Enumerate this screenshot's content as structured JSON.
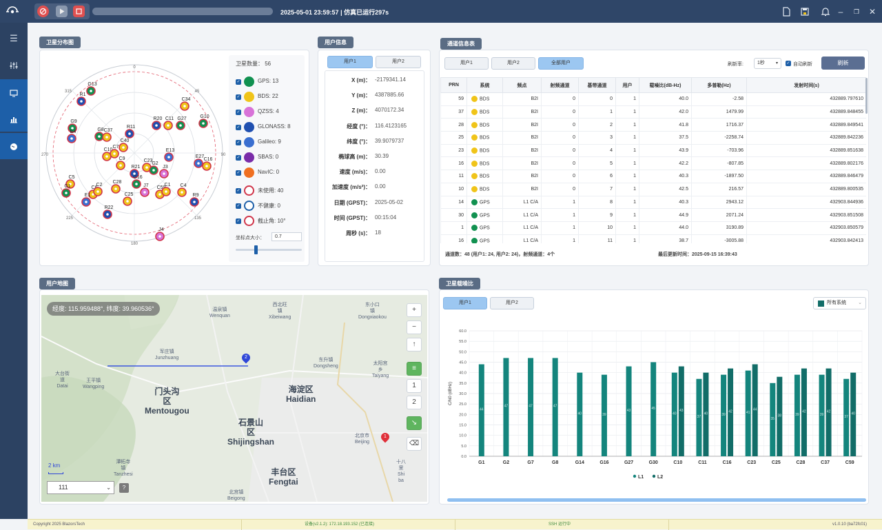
{
  "topbar": {
    "sim_time": "2025-05-01 23:59:57 | 仿真已运行297s",
    "icons": [
      "rocket-icon",
      "play-icon",
      "stop-icon",
      "file-icon",
      "save-icon",
      "bell-icon",
      "minimize-icon",
      "restore-icon",
      "close-icon"
    ]
  },
  "sidebar": {
    "items": [
      "menu-icon",
      "sliders-icon",
      "monitor-icon",
      "chart-icon",
      "globe-icon"
    ],
    "active_index": 3
  },
  "sky": {
    "title": "卫星分布图",
    "count_label": "卫星数量：",
    "count_value": "56",
    "systems": [
      {
        "label": "GPS: 13",
        "color": "#119150"
      },
      {
        "label": "BDS: 22",
        "color": "#f0c419"
      },
      {
        "label": "QZSS: 4",
        "color": "#d873d8"
      },
      {
        "label": "GLONASS: 8",
        "color": "#2050b0"
      },
      {
        "label": "Galileo: 9",
        "color": "#3a6fd0"
      },
      {
        "label": "SBAS: 0",
        "color": "#7a2ca8"
      },
      {
        "label": "NavIC: 0",
        "color": "#f07021"
      }
    ],
    "states": [
      {
        "label": "未使用: 40",
        "color": "#d0354a"
      },
      {
        "label": "不健康: 0",
        "color": "#1d5fa8"
      },
      {
        "label": "截止角: 10°",
        "color": "#d0354a"
      }
    ],
    "size_label": "坐标点大小：",
    "size_value": "0.7",
    "slider_fraction": 0.3,
    "az_labels": {
      "n": "0",
      "ne": "45",
      "e": "90",
      "se": "135",
      "s": "180",
      "sw": "225",
      "w": "270",
      "nw": "315"
    },
    "sats": [
      {
        "id": "G13"
      },
      {
        "id": "R1"
      },
      {
        "id": "G9"
      },
      {
        "id": "E4"
      },
      {
        "id": "G8"
      },
      {
        "id": "C37"
      },
      {
        "id": "R11"
      },
      {
        "id": "C40"
      },
      {
        "id": "C10"
      },
      {
        "id": "C7"
      },
      {
        "id": "C9"
      },
      {
        "id": "R21"
      },
      {
        "id": "C23"
      },
      {
        "id": "G2"
      },
      {
        "id": "R20"
      },
      {
        "id": "C11"
      },
      {
        "id": "G27"
      },
      {
        "id": "C34"
      },
      {
        "id": "G10"
      },
      {
        "id": "E13"
      },
      {
        "id": "E27"
      },
      {
        "id": "C16"
      },
      {
        "id": "C5"
      },
      {
        "id": "G16"
      },
      {
        "id": "C28"
      },
      {
        "id": "C6"
      },
      {
        "id": "C2"
      },
      {
        "id": "J7"
      },
      {
        "id": "C59"
      },
      {
        "id": "C1"
      },
      {
        "id": "C4"
      },
      {
        "id": "R9"
      },
      {
        "id": "E1"
      },
      {
        "id": "R22"
      },
      {
        "id": "J4"
      },
      {
        "id": "G1"
      },
      {
        "id": "C25"
      },
      {
        "id": "J3"
      }
    ]
  },
  "user_info": {
    "title": "用户信息",
    "tabs": [
      "用户1",
      "用户2"
    ],
    "rows": [
      {
        "k": "X (m)：",
        "v": "-2179341.14"
      },
      {
        "k": "Y (m)：",
        "v": "4387885.66"
      },
      {
        "k": "Z (m)：",
        "v": "4070172.34"
      },
      {
        "k": "经度 (°)：",
        "v": "116.4123165"
      },
      {
        "k": "纬度 (°)：",
        "v": "39.9079737"
      },
      {
        "k": "椭球高 (m)：",
        "v": "30.39"
      },
      {
        "k": "速度 (m/s)：",
        "v": "0.00"
      },
      {
        "k": "加速度 (m/s²)：",
        "v": "0.00"
      },
      {
        "k": "日期 (GPST)：",
        "v": "2025-05-02"
      },
      {
        "k": "时间 (GPST)：",
        "v": "00:15:04"
      },
      {
        "k": "周秒 (s)：",
        "v": "18"
      }
    ]
  },
  "channels": {
    "title": "通道信息表",
    "tabs": [
      "用户1",
      "用户2",
      "全部用户"
    ],
    "refresh_label": "刷新率:",
    "refresh_value": "1秒",
    "auto_refresh_label": "自动刷新",
    "refresh_button": "刷新",
    "headers": [
      "PRN",
      "系统",
      "频点",
      "射频通道",
      "基带通道",
      "用户",
      "载噪比(dB-Hz)",
      "多普勒(Hz)",
      "发射时间(s)"
    ],
    "rows": [
      {
        "prn": "59",
        "sys": "BDS",
        "color": "#f0c419",
        "freq": "B2I",
        "rf": "0",
        "bb": "0",
        "user": "1",
        "cn0": "40.0",
        "dop": "-2.58",
        "tx": "432889.797610"
      },
      {
        "prn": "37",
        "sys": "BDS",
        "color": "#f0c419",
        "freq": "B2I",
        "rf": "0",
        "bb": "1",
        "user": "1",
        "cn0": "42.0",
        "dop": "1479.99",
        "tx": "432889.848455"
      },
      {
        "prn": "28",
        "sys": "BDS",
        "color": "#f0c419",
        "freq": "B2I",
        "rf": "0",
        "bb": "2",
        "user": "1",
        "cn0": "41.8",
        "dop": "1716.37",
        "tx": "432889.849541"
      },
      {
        "prn": "25",
        "sys": "BDS",
        "color": "#f0c419",
        "freq": "B2I",
        "rf": "0",
        "bb": "3",
        "user": "1",
        "cn0": "37.5",
        "dop": "-2258.74",
        "tx": "432889.842236"
      },
      {
        "prn": "23",
        "sys": "BDS",
        "color": "#f0c419",
        "freq": "B2I",
        "rf": "0",
        "bb": "4",
        "user": "1",
        "cn0": "43.9",
        "dop": "-703.96",
        "tx": "432889.851638"
      },
      {
        "prn": "16",
        "sys": "BDS",
        "color": "#f0c419",
        "freq": "B2I",
        "rf": "0",
        "bb": "5",
        "user": "1",
        "cn0": "42.2",
        "dop": "-807.85",
        "tx": "432889.802176"
      },
      {
        "prn": "11",
        "sys": "BDS",
        "color": "#f0c419",
        "freq": "B2I",
        "rf": "0",
        "bb": "6",
        "user": "1",
        "cn0": "40.3",
        "dop": "-1897.50",
        "tx": "432889.846479"
      },
      {
        "prn": "10",
        "sys": "BDS",
        "color": "#f0c419",
        "freq": "B2I",
        "rf": "0",
        "bb": "7",
        "user": "1",
        "cn0": "42.5",
        "dop": "216.57",
        "tx": "432889.800535"
      },
      {
        "prn": "14",
        "sys": "GPS",
        "color": "#119150",
        "freq": "L1 C/A",
        "rf": "1",
        "bb": "8",
        "user": "1",
        "cn0": "40.3",
        "dop": "2943.12",
        "tx": "432903.844936"
      },
      {
        "prn": "30",
        "sys": "GPS",
        "color": "#119150",
        "freq": "L1 C/A",
        "rf": "1",
        "bb": "9",
        "user": "1",
        "cn0": "44.9",
        "dop": "2071.24",
        "tx": "432903.851508"
      },
      {
        "prn": "1",
        "sys": "GPS",
        "color": "#119150",
        "freq": "L1 C/A",
        "rf": "1",
        "bb": "10",
        "user": "1",
        "cn0": "44.0",
        "dop": "3190.89",
        "tx": "432903.850579"
      },
      {
        "prn": "16",
        "sys": "GPS",
        "color": "#119150",
        "freq": "L1 C/A",
        "rf": "1",
        "bb": "11",
        "user": "1",
        "cn0": "38.7",
        "dop": "-3005.88",
        "tx": "432903.842413"
      }
    ],
    "footer_count": "通道数：48 (用户1: 24, 用户2: 24)，射频通道：4个",
    "footer_time": "最后更新时间：2025-09-15 16:39:43"
  },
  "map": {
    "title": "用户地图",
    "coords": "经度: 115.959488°, 纬度: 39.960536°",
    "scale_label": "2 km",
    "select_value": "111",
    "help_label": "?",
    "controls": [
      "+",
      "−",
      "↑",
      "≡",
      "1",
      "2",
      "↘",
      "⌫"
    ],
    "labels": [
      {
        "text": "温泉镇\nWenquan",
        "big": false
      },
      {
        "text": "西北旺\n镇\nXibeiwang",
        "big": false
      },
      {
        "text": "东小口\n镇\nDongxiaokou",
        "big": false
      },
      {
        "text": "军庄镇\nJunzhuang",
        "big": false
      },
      {
        "text": "东升镇\nDongsheng",
        "big": false
      },
      {
        "text": "太阳宫\n乡\nTaiyang",
        "big": false
      },
      {
        "text": "大台街\n道\nDatai",
        "big": false
      },
      {
        "text": "王平镇\nWangping",
        "big": false
      },
      {
        "text": "门头沟\n区\nMentougou",
        "big": true
      },
      {
        "text": "海淀区\nHaidian",
        "big": true
      },
      {
        "text": "石景山\n区\nShijingshan",
        "big": true
      },
      {
        "text": "北京市\nBeijing",
        "big": false
      },
      {
        "text": "潭柘寺\n镇\nTanzhesi",
        "big": false
      },
      {
        "text": "丰台区\nFengtai",
        "big": true
      },
      {
        "text": "北宫镇\nBeigong",
        "big": false
      },
      {
        "text": "十八\n里\nShi\nba",
        "big": false
      }
    ],
    "markers": [
      "1",
      "2"
    ]
  },
  "cn0_chart": {
    "title": "卫星载噪比",
    "tabs": [
      "用户1",
      "用户2"
    ],
    "filter_label": "所有系统",
    "chart_data": {
      "type": "bar",
      "categories": [
        "G1",
        "G2",
        "G7",
        "G8",
        "G14",
        "G16",
        "G27",
        "G30",
        "C10",
        "C11",
        "C16",
        "C23",
        "C25",
        "C28",
        "C37",
        "C59"
      ],
      "series": [
        {
          "name": "L1",
          "values": [
            44,
            47,
            47,
            47,
            40,
            39,
            43,
            45,
            40,
            37,
            39,
            41,
            35,
            39,
            39,
            37
          ]
        },
        {
          "name": "L2",
          "values": [
            null,
            null,
            null,
            null,
            null,
            null,
            null,
            null,
            43,
            40,
            42,
            44,
            38,
            42,
            42,
            40
          ]
        }
      ],
      "ylabel": "C/N0 (dBHz)",
      "ylim": [
        0,
        60
      ],
      "yticks": [
        "0.0",
        "5.0",
        "10.0",
        "15.0",
        "20.0",
        "25.0",
        "30.0",
        "35.0",
        "40.0",
        "45.0",
        "50.0",
        "55.0",
        "60.0"
      ],
      "legend_position": "bottom",
      "colors": {
        "L1": "#14857d",
        "L2": "#126d68"
      },
      "grid": true
    }
  },
  "status": {
    "copyright": "Copyright 2025 BlazorsTech",
    "device": "设备(v2.1.2): 172.18.193.152 (已连接)",
    "ssh": "SSH 运行中",
    "version": "v1.0.10 (ba72fc01)"
  }
}
